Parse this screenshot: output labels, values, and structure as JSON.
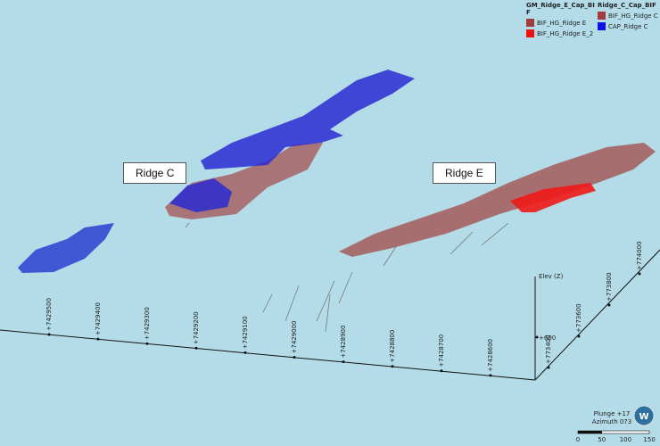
{
  "legend": {
    "groups": [
      {
        "title": "GM_Ridge_E_Cap_BIF",
        "items": [
          {
            "label": "BIF_HG_Ridge E",
            "color": "#a23b3b"
          },
          {
            "label": "BIF_HG_Ridge E_2",
            "color": "#f01010"
          }
        ]
      },
      {
        "title": "Ridge_C_Cap_BIF",
        "items": [
          {
            "label": "BIF_HG_Ridge C",
            "color": "#a23b3b"
          },
          {
            "label": "CAP_Ridge C",
            "color": "#1010e8"
          }
        ]
      }
    ]
  },
  "callouts": [
    "Ridge C",
    "Ridge E"
  ],
  "northing_labels": [
    "+7429500",
    "+7429400",
    "+7429300",
    "+7429200",
    "+7429100",
    "+7429000",
    "+7428900",
    "+7428800",
    "+7428700",
    "+7428600"
  ],
  "easting_labels": [
    "+773400",
    "+773600",
    "+773800",
    "+774000"
  ],
  "elevation": {
    "title": "Elev (Z)",
    "label": "+600"
  },
  "view": {
    "plunge": "Plunge +17",
    "azimuth": "Azimuth 073"
  },
  "scale_bar": [
    "0",
    "50",
    "100",
    "150"
  ]
}
